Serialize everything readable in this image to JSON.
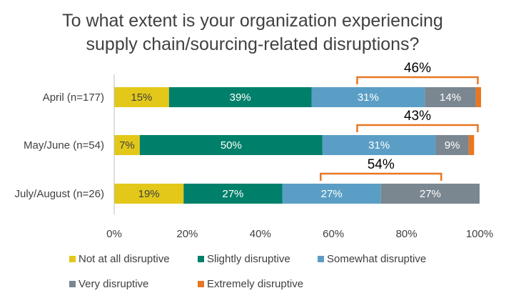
{
  "chart_data": {
    "type": "bar",
    "orientation": "horizontal",
    "stacked": true,
    "title": [
      "To what extent is your organization experiencing",
      "supply chain/sourcing-related disruptions?"
    ],
    "categories": [
      "April (n=177)",
      "May/June (n=54)",
      "July/August (n=26)"
    ],
    "series": [
      {
        "name": "Not at all disruptive",
        "color": "#e3c81a",
        "values": [
          15,
          7,
          19
        ],
        "labels": [
          "15%",
          "7%",
          "19%"
        ],
        "label_color": "#404040"
      },
      {
        "name": "Slightly disruptive",
        "color": "#00806a",
        "values": [
          39,
          50,
          27
        ],
        "labels": [
          "39%",
          "50%",
          "27%"
        ],
        "label_color": "#ffffff"
      },
      {
        "name": "Somewhat disruptive",
        "color": "#5b9ec5",
        "values": [
          31,
          31,
          27
        ],
        "labels": [
          "31%",
          "31%",
          "27%"
        ],
        "label_color": "#ffffff"
      },
      {
        "name": "Very disruptive",
        "color": "#7a8690",
        "values": [
          14,
          9,
          27
        ],
        "labels": [
          "14%",
          "9%",
          "27%"
        ],
        "label_color": "#ffffff"
      },
      {
        "name": "Extremely disruptive",
        "color": "#e87722",
        "values": [
          1.4,
          1.5,
          0
        ],
        "labels": [
          "",
          "",
          ""
        ],
        "label_color": "#ffffff"
      }
    ],
    "brackets": [
      {
        "category": 0,
        "label": "46%",
        "from": 66.5,
        "to": 99.5
      },
      {
        "category": 1,
        "label": "43%",
        "from": 66.5,
        "to": 99.5
      },
      {
        "category": 2,
        "label": "54%",
        "from": 56.5,
        "to": 89.5
      }
    ],
    "bracket_color": "#e87722",
    "xlim": [
      0,
      100
    ],
    "xticks": [
      0,
      20,
      40,
      60,
      80,
      100
    ],
    "xtick_labels": [
      "0%",
      "20%",
      "40%",
      "60%",
      "80%",
      "100%"
    ],
    "grid": false,
    "legend_position": "bottom"
  }
}
